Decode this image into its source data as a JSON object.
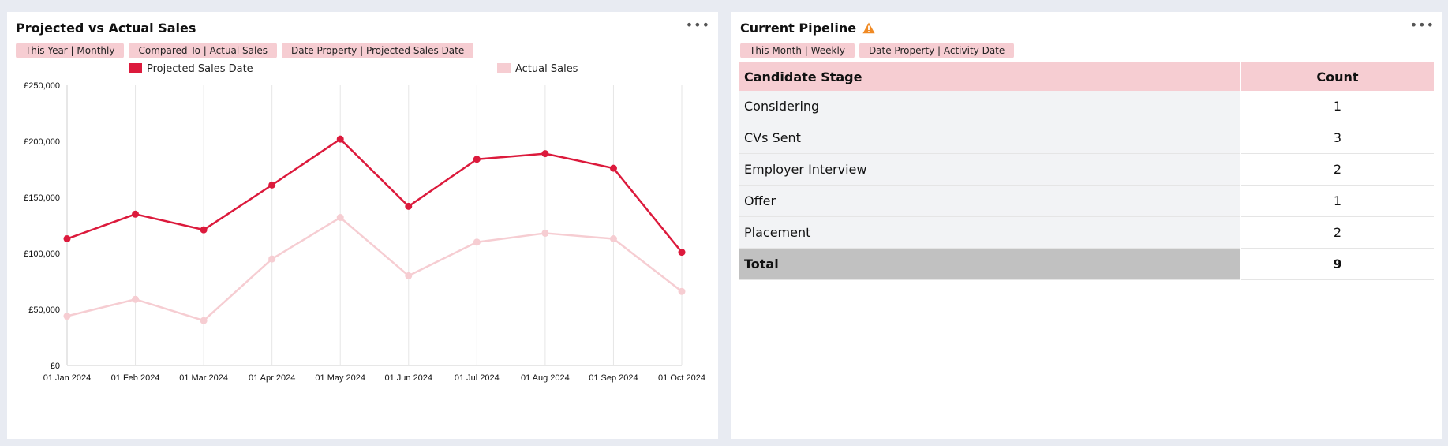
{
  "left_panel": {
    "title": "Projected vs Actual Sales",
    "more": "•••",
    "filters": [
      "This Year | Monthly",
      "Compared To | Actual Sales",
      "Date Property | Projected Sales Date"
    ]
  },
  "right_panel": {
    "title": "Current Pipeline",
    "warning_icon": "warning-triangle-icon",
    "more": "•••",
    "filters": [
      "This Month | Weekly",
      "Date Property | Activity Date"
    ],
    "table": {
      "headers": [
        "Candidate Stage",
        "Count"
      ],
      "rows": [
        {
          "stage": "Considering",
          "count": "1"
        },
        {
          "stage": "CVs Sent",
          "count": "3"
        },
        {
          "stage": "Employer Interview",
          "count": "2"
        },
        {
          "stage": "Offer",
          "count": "1"
        },
        {
          "stage": "Placement",
          "count": "2"
        }
      ],
      "total": {
        "stage": "Total",
        "count": "9"
      }
    }
  },
  "colors": {
    "projected": "#dc1a3c",
    "actual": "#f6cdd2",
    "chip": "#f6cdd2"
  },
  "chart_data": {
    "type": "line",
    "title": "Projected vs Actual Sales",
    "x": [
      "01 Jan 2024",
      "01 Feb 2024",
      "01 Mar 2024",
      "01 Apr 2024",
      "01 May 2024",
      "01 Jun 2024",
      "01 Jul 2024",
      "01 Aug 2024",
      "01 Sep 2024",
      "01 Oct 2024"
    ],
    "series": [
      {
        "name": "Projected Sales Date",
        "values": [
          113000,
          135000,
          121000,
          161000,
          202000,
          142000,
          184000,
          189000,
          176000,
          101000
        ]
      },
      {
        "name": "Actual Sales",
        "values": [
          44000,
          59000,
          40000,
          95000,
          132000,
          80000,
          110000,
          118000,
          113000,
          66000
        ]
      }
    ],
    "y_ticks": [
      "£0",
      "£50,000",
      "£100,000",
      "£150,000",
      "£200,000",
      "£250,000"
    ],
    "ylim": [
      0,
      250000
    ],
    "legend_position": "top",
    "grid": "vertical"
  }
}
